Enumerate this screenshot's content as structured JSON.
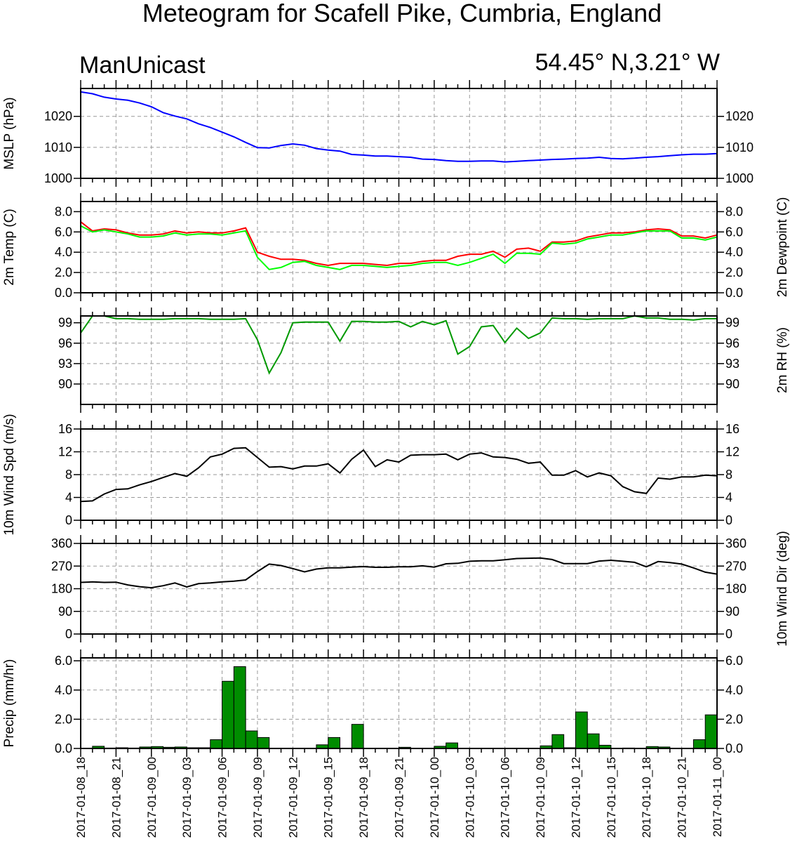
{
  "title": "Meteogram for Scafell Pike, Cumbria, England",
  "model": "ManUnicast",
  "location": "54.45° N,3.21° W",
  "x_labels": [
    "2017-01-08_18",
    "2017-01-08_21",
    "2017-01-09_00",
    "2017-01-09_03",
    "2017-01-09_06",
    "2017-01-09_09",
    "2017-01-09_12",
    "2017-01-09_15",
    "2017-01-09_18",
    "2017-01-09_21",
    "2017-01-10_00",
    "2017-01-10_03",
    "2017-01-10_06",
    "2017-01-10_09",
    "2017-01-10_12",
    "2017-01-10_15",
    "2017-01-10_18",
    "2017-01-10_21",
    "2017-01-11_00"
  ],
  "chart_data": [
    {
      "type": "line",
      "id": "mslp",
      "ylabel": "MSLP (hPa)",
      "ylim": [
        1000,
        1029
      ],
      "yticks": [
        1000,
        1010,
        1020
      ],
      "ytick_labels": [
        "1000",
        "1010",
        "1020"
      ],
      "grid": true,
      "x_hours": [
        0,
        1,
        2,
        3,
        4,
        5,
        6,
        7,
        8,
        9,
        10,
        11,
        12,
        13,
        14,
        15,
        16,
        17,
        18,
        19,
        20,
        21,
        22,
        23,
        24,
        25,
        26,
        27,
        28,
        29,
        30,
        31,
        32,
        33,
        34,
        35,
        36,
        37,
        38,
        39,
        40,
        41,
        42,
        43,
        44,
        45,
        46,
        47,
        48,
        49,
        50,
        51,
        52,
        53,
        54
      ],
      "series": [
        {
          "color": "#0000ff",
          "values": [
            1027.9,
            1027.3,
            1026.2,
            1025.6,
            1025.2,
            1024.3,
            1023.1,
            1021.2,
            1020.1,
            1019.2,
            1017.6,
            1016.4,
            1014.9,
            1013.4,
            1011.6,
            1009.9,
            1009.8,
            1010.6,
            1011.1,
            1010.7,
            1009.6,
            1009.1,
            1008.8,
            1007.7,
            1007.5,
            1007.2,
            1007.2,
            1007.0,
            1006.8,
            1006.2,
            1006.1,
            1005.7,
            1005.5,
            1005.5,
            1005.6,
            1005.6,
            1005.3,
            1005.5,
            1005.7,
            1005.9,
            1006.1,
            1006.2,
            1006.4,
            1006.5,
            1006.8,
            1006.4,
            1006.3,
            1006.5,
            1006.8,
            1007.0,
            1007.3,
            1007.6,
            1007.8,
            1007.8,
            1008.0
          ]
        }
      ]
    },
    {
      "type": "line",
      "id": "temp",
      "ylabel": "2m Temp (C)",
      "ylabel_right": "2m Dewpoint (C)",
      "ylim": [
        0,
        9
      ],
      "yticks": [
        0,
        2,
        4,
        6,
        8
      ],
      "ytick_labels": [
        "0.0",
        "2.0",
        "4.0",
        "6.0",
        "8.0"
      ],
      "grid": true,
      "x_hours": [
        0,
        1,
        2,
        3,
        4,
        5,
        6,
        7,
        8,
        9,
        10,
        11,
        12,
        13,
        14,
        15,
        16,
        17,
        18,
        19,
        20,
        21,
        22,
        23,
        24,
        25,
        26,
        27,
        28,
        29,
        30,
        31,
        32,
        33,
        34,
        35,
        36,
        37,
        38,
        39,
        40,
        41,
        42,
        43,
        44,
        45,
        46,
        47,
        48,
        49,
        50,
        51,
        52,
        53,
        54
      ],
      "series": [
        {
          "color": "#ff0000",
          "values": [
            7.0,
            6.1,
            6.3,
            6.2,
            5.9,
            5.7,
            5.7,
            5.8,
            6.1,
            5.9,
            6.0,
            5.9,
            5.9,
            6.1,
            6.4,
            4.0,
            3.6,
            3.3,
            3.3,
            3.2,
            2.9,
            2.7,
            2.9,
            2.9,
            2.9,
            2.8,
            2.7,
            2.9,
            2.9,
            3.1,
            3.2,
            3.2,
            3.6,
            3.8,
            3.8,
            4.1,
            3.5,
            4.3,
            4.4,
            4.1,
            5.0,
            5.0,
            5.1,
            5.5,
            5.7,
            5.9,
            5.9,
            6.0,
            6.2,
            6.3,
            6.2,
            5.6,
            5.6,
            5.4,
            5.7
          ]
        },
        {
          "color": "#00ff00",
          "values": [
            6.6,
            6.0,
            6.2,
            6.0,
            5.8,
            5.5,
            5.5,
            5.6,
            5.9,
            5.7,
            5.8,
            5.8,
            5.7,
            5.9,
            6.1,
            3.5,
            2.3,
            2.5,
            3.0,
            3.1,
            2.7,
            2.5,
            2.3,
            2.7,
            2.7,
            2.6,
            2.5,
            2.6,
            2.7,
            2.9,
            3.0,
            3.0,
            2.7,
            3.0,
            3.4,
            3.8,
            2.9,
            3.9,
            3.9,
            3.8,
            4.9,
            4.8,
            4.9,
            5.3,
            5.5,
            5.7,
            5.7,
            5.9,
            6.1,
            6.1,
            6.1,
            5.4,
            5.4,
            5.2,
            5.5
          ]
        }
      ]
    },
    {
      "type": "line",
      "id": "rh",
      "ylabel_right": "2m RH (%)",
      "ylim": [
        87,
        100
      ],
      "yticks": [
        90,
        93,
        96,
        99
      ],
      "ytick_labels": [
        "90",
        "93",
        "96",
        "99"
      ],
      "grid": true,
      "x_hours": [
        0,
        1,
        2,
        3,
        4,
        5,
        6,
        7,
        8,
        9,
        10,
        11,
        12,
        13,
        14,
        15,
        16,
        17,
        18,
        19,
        20,
        21,
        22,
        23,
        24,
        25,
        26,
        27,
        28,
        29,
        30,
        31,
        32,
        33,
        34,
        35,
        36,
        37,
        38,
        39,
        40,
        41,
        42,
        43,
        44,
        45,
        46,
        47,
        48,
        49,
        50,
        51,
        52,
        53,
        54
      ],
      "series": [
        {
          "color": "#009900",
          "values": [
            97.5,
            100.0,
            100.0,
            99.6,
            99.6,
            99.5,
            99.5,
            99.5,
            99.6,
            99.6,
            99.6,
            99.5,
            99.5,
            99.5,
            99.6,
            96.5,
            91.6,
            94.6,
            99.0,
            99.1,
            99.1,
            99.1,
            96.3,
            99.2,
            99.2,
            99.1,
            99.1,
            99.2,
            98.4,
            99.2,
            98.7,
            99.3,
            94.4,
            95.5,
            98.4,
            98.6,
            96.1,
            98.2,
            96.7,
            97.5,
            99.7,
            99.6,
            99.6,
            99.5,
            99.6,
            99.6,
            99.6,
            100.0,
            99.7,
            99.7,
            99.5,
            99.5,
            99.4,
            99.6,
            99.6
          ]
        }
      ]
    },
    {
      "type": "line",
      "id": "wspd",
      "ylabel": "10m Wind Spd (m/s)",
      "ylim": [
        0,
        16
      ],
      "yticks": [
        0,
        4,
        8,
        12,
        16
      ],
      "ytick_labels": [
        "0",
        "4",
        "8",
        "12",
        "16"
      ],
      "grid": true,
      "x_hours": [
        0,
        1,
        2,
        3,
        4,
        5,
        6,
        7,
        8,
        9,
        10,
        11,
        12,
        13,
        14,
        15,
        16,
        17,
        18,
        19,
        20,
        21,
        22,
        23,
        24,
        25,
        26,
        27,
        28,
        29,
        30,
        31,
        32,
        33,
        34,
        35,
        36,
        37,
        38,
        39,
        40,
        41,
        42,
        43,
        44,
        45,
        46,
        47,
        48,
        49,
        50,
        51,
        52,
        53,
        54
      ],
      "series": [
        {
          "color": "#000000",
          "values": [
            3.3,
            3.4,
            4.6,
            5.4,
            5.5,
            6.2,
            6.8,
            7.5,
            8.2,
            7.7,
            9.2,
            11.1,
            11.6,
            12.6,
            12.7,
            11.0,
            9.3,
            9.4,
            9.0,
            9.5,
            9.5,
            9.9,
            8.3,
            10.7,
            12.3,
            9.4,
            10.6,
            10.2,
            11.4,
            11.5,
            11.5,
            11.6,
            10.6,
            11.6,
            11.8,
            11.1,
            11.0,
            10.7,
            10.0,
            10.2,
            7.9,
            7.9,
            8.7,
            7.6,
            8.3,
            7.8,
            5.9,
            5.0,
            4.7,
            7.4,
            7.2,
            7.6,
            7.6,
            7.9,
            7.8
          ]
        }
      ]
    },
    {
      "type": "line",
      "id": "wdir",
      "ylabel_right": "10m Wind Dir (deg)",
      "ylim": [
        0,
        360
      ],
      "yticks": [
        0,
        90,
        180,
        270,
        360
      ],
      "ytick_labels": [
        "0",
        "90",
        "180",
        "270",
        "360"
      ],
      "grid": true,
      "x_hours": [
        0,
        1,
        2,
        3,
        4,
        5,
        6,
        7,
        8,
        9,
        10,
        11,
        12,
        13,
        14,
        15,
        16,
        17,
        18,
        19,
        20,
        21,
        22,
        23,
        24,
        25,
        26,
        27,
        28,
        29,
        30,
        31,
        32,
        33,
        34,
        35,
        36,
        37,
        38,
        39,
        40,
        41,
        42,
        43,
        44,
        45,
        46,
        47,
        48,
        49,
        50,
        51,
        52,
        53,
        54
      ],
      "series": [
        {
          "color": "#000000",
          "values": [
            205,
            207,
            205,
            206,
            195,
            188,
            184,
            192,
            203,
            187,
            200,
            203,
            207,
            210,
            215,
            248,
            278,
            272,
            260,
            247,
            258,
            263,
            263,
            266,
            268,
            265,
            265,
            267,
            267,
            271,
            266,
            279,
            281,
            289,
            291,
            291,
            295,
            300,
            301,
            302,
            296,
            280,
            280,
            280,
            290,
            293,
            289,
            285,
            267,
            288,
            284,
            278,
            263,
            246,
            238
          ]
        }
      ]
    },
    {
      "type": "bar",
      "id": "precip",
      "ylabel": "Precip (mm/hr)",
      "ylim": [
        0,
        6.2
      ],
      "yticks": [
        0,
        2,
        4,
        6
      ],
      "ytick_labels": [
        "0.0",
        "2.0",
        "4.0",
        "6.0"
      ],
      "grid": true,
      "x_hours": [
        0,
        1,
        2,
        3,
        4,
        5,
        6,
        7,
        8,
        9,
        10,
        11,
        12,
        13,
        14,
        15,
        16,
        17,
        18,
        19,
        20,
        21,
        22,
        23,
        24,
        25,
        26,
        27,
        28,
        29,
        30,
        31,
        32,
        33,
        34,
        35,
        36,
        37,
        38,
        39,
        40,
        41,
        42,
        43,
        44,
        45,
        46,
        47,
        48,
        49,
        50,
        51,
        52,
        53
      ],
      "series": [
        {
          "color": "#008c00",
          "values": [
            0.0,
            0.15,
            0.03,
            0.05,
            0.03,
            0.1,
            0.13,
            0.08,
            0.1,
            0.05,
            0.05,
            0.6,
            4.6,
            5.6,
            1.2,
            0.75,
            0.0,
            0.0,
            0.0,
            0.0,
            0.25,
            0.75,
            0.0,
            1.65,
            0.0,
            0.0,
            0.0,
            0.08,
            0.0,
            0.0,
            0.15,
            0.38,
            0.0,
            0.0,
            0.0,
            0.0,
            0.0,
            0.0,
            0.0,
            0.18,
            0.95,
            0.05,
            2.5,
            1.0,
            0.22,
            0.0,
            0.03,
            0.0,
            0.13,
            0.1,
            0.0,
            0.0,
            0.6,
            2.3
          ]
        }
      ]
    }
  ]
}
